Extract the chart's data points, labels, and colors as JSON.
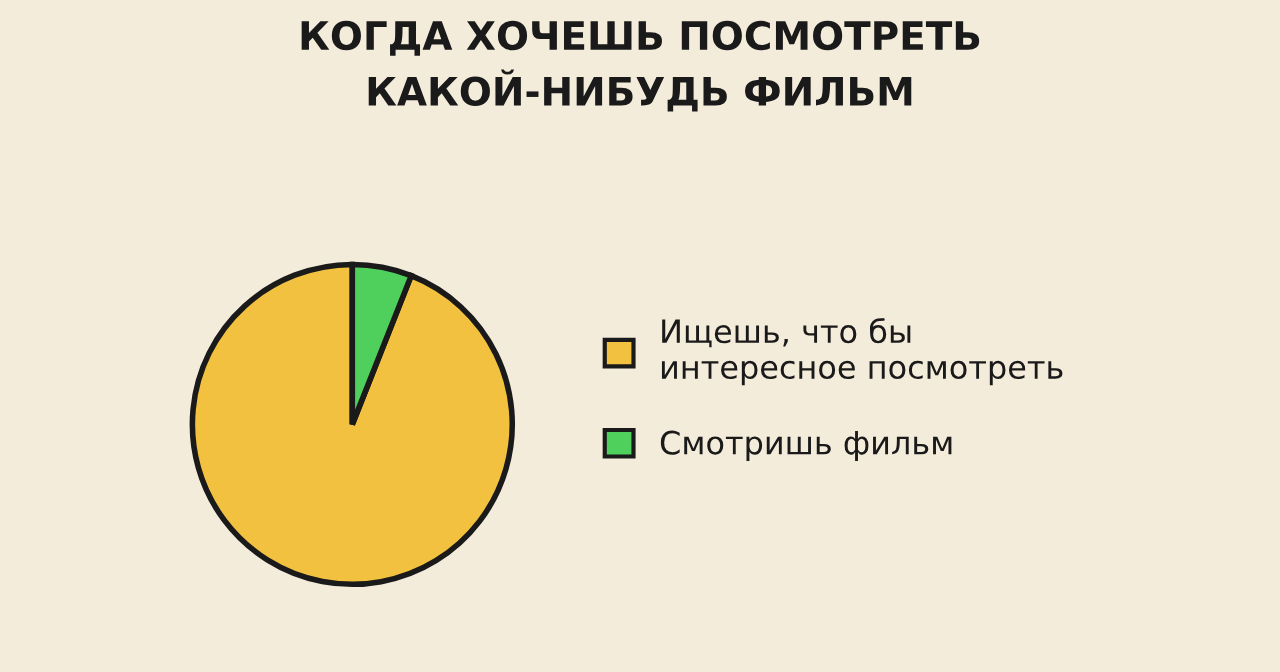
{
  "chart_data": {
    "type": "pie",
    "title": "КОГДА ХОЧЕШЬ ПОСМОТРЕТЬ\nКАКОЙ-НИБУДЬ ФИЛЬМ",
    "categories": [
      "Ищешь, что бы\nинтересное посмотреть",
      "Смотришь фильм"
    ],
    "values": [
      94,
      6
    ],
    "colors": [
      "#f2c13f",
      "#4fcf5c"
    ],
    "legend": "right"
  }
}
